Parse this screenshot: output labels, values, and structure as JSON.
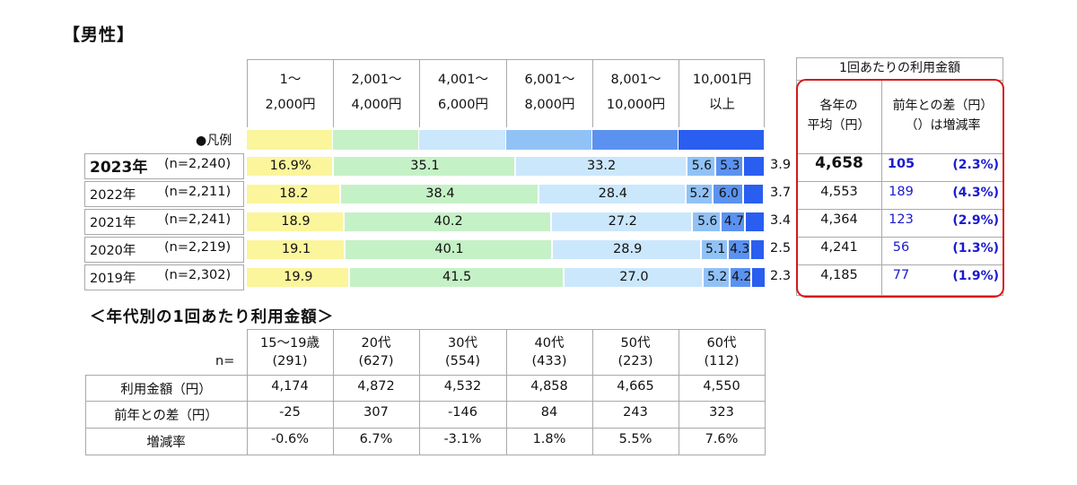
{
  "page_title": "【男性】",
  "legend_label": "●凡例",
  "header_columns": [
    {
      "line1": "1～",
      "line2": "2,000円",
      "color": "#fbf59c"
    },
    {
      "line1": "2,001～",
      "line2": "4,000円",
      "color": "#c5f1c6"
    },
    {
      "line1": "4,001～",
      "line2": "6,000円",
      "color": "#cbe7fc"
    },
    {
      "line1": "6,001～",
      "line2": "8,000円",
      "color": "#91c2f6"
    },
    {
      "line1": "8,001～",
      "line2": "10,000円",
      "color": "#5b92f0"
    },
    {
      "line1": "10,001円",
      "line2": "以上",
      "color": "#2a5ef0"
    }
  ],
  "chart_data": {
    "type": "bar",
    "orientation": "horizontal-stacked-100",
    "categories": [
      "2023年 (n=2,240)",
      "2022年 (n=2,211)",
      "2021年 (n=2,241)",
      "2020年 (n=2,219)",
      "2019年 (n=2,302)"
    ],
    "series": [
      {
        "name": "1～2,000円",
        "values": [
          16.9,
          18.2,
          18.9,
          19.1,
          19.9
        ]
      },
      {
        "name": "2,001～4,000円",
        "values": [
          35.1,
          38.4,
          40.2,
          40.1,
          41.5
        ]
      },
      {
        "name": "4,001～6,000円",
        "values": [
          33.2,
          28.4,
          27.2,
          28.9,
          27.0
        ]
      },
      {
        "name": "6,001～8,000円",
        "values": [
          5.6,
          5.2,
          5.6,
          5.1,
          5.2
        ]
      },
      {
        "name": "8,001～10,000円",
        "values": [
          5.3,
          6.0,
          4.7,
          4.3,
          4.2
        ]
      },
      {
        "name": "10,001円以上",
        "values": [
          3.9,
          3.7,
          3.4,
          2.5,
          2.3
        ]
      }
    ],
    "value_labels": [
      [
        "16.9%",
        "35.1",
        "33.2",
        "5.6",
        "5.3",
        "3.9"
      ],
      [
        "18.2",
        "38.4",
        "28.4",
        "5.2",
        "6.0",
        "3.7"
      ],
      [
        "18.9",
        "40.2",
        "27.2",
        "5.6",
        "4.7",
        "3.4"
      ],
      [
        "19.1",
        "40.1",
        "28.9",
        "5.1",
        "4.3",
        "2.5"
      ],
      [
        "19.9",
        "41.5",
        "27.0",
        "5.2",
        "4.2",
        "2.3"
      ]
    ],
    "xlim": [
      0,
      100
    ],
    "legend_position": "top"
  },
  "rows": [
    {
      "year": "2023年",
      "n": "(n=2,240)"
    },
    {
      "year": "2022年",
      "n": "(n=2,211)"
    },
    {
      "year": "2021年",
      "n": "(n=2,241)"
    },
    {
      "year": "2020年",
      "n": "(n=2,219)"
    },
    {
      "year": "2019年",
      "n": "(n=2,302)"
    }
  ],
  "right_table": {
    "header": "1回あたりの利用金額",
    "col1_line1": "各年の",
    "col1_line2": "平均（円）",
    "col2_line1": "前年との差（円）",
    "col2_line2": "（）は増減率",
    "rows": [
      {
        "avg": "4,658",
        "diff": "105",
        "rate": "(2.3%)"
      },
      {
        "avg": "4,553",
        "diff": "189",
        "rate": "(4.3%)"
      },
      {
        "avg": "4,364",
        "diff": "123",
        "rate": "(2.9%)"
      },
      {
        "avg": "4,241",
        "diff": "56",
        "rate": "(1.3%)"
      },
      {
        "avg": "4,185",
        "diff": "77",
        "rate": "(1.9%)"
      }
    ],
    "highlight_color": "#d71818",
    "value_color": "#1a1ad0"
  },
  "age_table": {
    "title": "＜年代別の1回あたり利用金額＞",
    "n_label": "n=",
    "columns": [
      {
        "age": "15～19歳",
        "n": "(291)"
      },
      {
        "age": "20代",
        "n": "(627)"
      },
      {
        "age": "30代",
        "n": "(554)"
      },
      {
        "age": "40代",
        "n": "(433)"
      },
      {
        "age": "50代",
        "n": "(223)"
      },
      {
        "age": "60代",
        "n": "(112)"
      }
    ],
    "rows": [
      {
        "label": "利用金額（円）",
        "values": [
          "4,174",
          "4,872",
          "4,532",
          "4,858",
          "4,665",
          "4,550"
        ]
      },
      {
        "label": "前年との差（円）",
        "values": [
          "-25",
          "307",
          "-146",
          "84",
          "243",
          "323"
        ]
      },
      {
        "label": "増減率",
        "values": [
          "-0.6%",
          "6.7%",
          "-3.1%",
          "1.8%",
          "5.5%",
          "7.6%"
        ]
      }
    ]
  }
}
